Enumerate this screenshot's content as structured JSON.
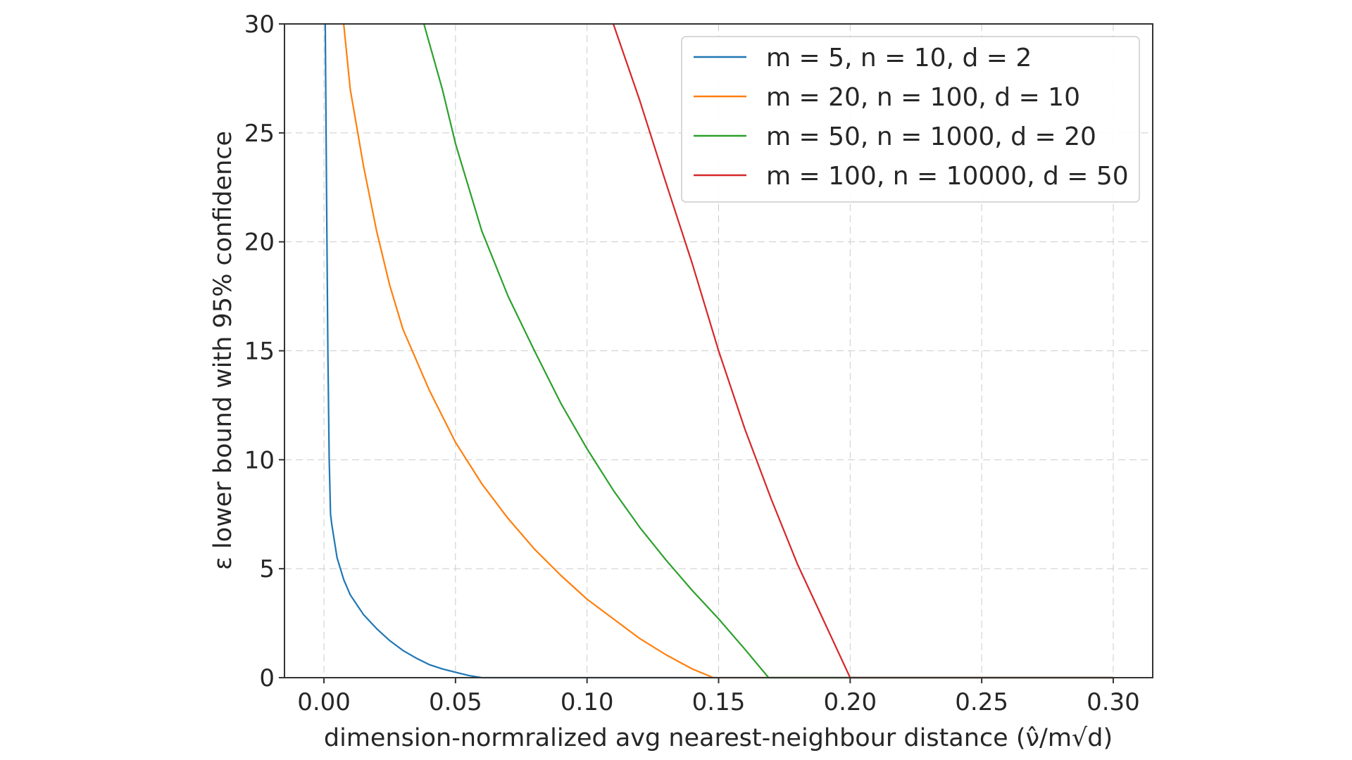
{
  "chart_data": {
    "type": "line",
    "xlabel": "dimension-normralized avg nearest-neighbour distance (ν̂/m√d)",
    "ylabel": "ε lower bound with 95% confidence",
    "xlim": [
      -0.015,
      0.315
    ],
    "ylim": [
      0,
      30
    ],
    "xticks": [
      "0.00",
      "0.05",
      "0.10",
      "0.15",
      "0.20",
      "0.25",
      "0.30"
    ],
    "yticks": [
      "0",
      "5",
      "10",
      "15",
      "20",
      "25",
      "30"
    ],
    "grid": true,
    "legend_position": "top-right",
    "series": [
      {
        "name": "m = 5, n = 10, d = 2",
        "color": "#1f77b4",
        "x": [
          0.0005,
          0.001,
          0.0015,
          0.002,
          0.0025,
          0.003,
          0.005,
          0.0075,
          0.01,
          0.015,
          0.02,
          0.025,
          0.03,
          0.035,
          0.04,
          0.045,
          0.05,
          0.055,
          0.06,
          0.1,
          0.15,
          0.2,
          0.25,
          0.3
        ],
        "y": [
          30,
          22,
          15,
          10,
          7.5,
          7.0,
          5.5,
          4.5,
          3.8,
          2.9,
          2.25,
          1.7,
          1.25,
          0.9,
          0.6,
          0.4,
          0.25,
          0.1,
          0,
          0,
          0,
          0,
          0,
          0
        ]
      },
      {
        "name": "m = 20, n = 100, d = 10",
        "color": "#ff7f0e",
        "x": [
          0.0075,
          0.01,
          0.015,
          0.02,
          0.025,
          0.03,
          0.04,
          0.05,
          0.06,
          0.07,
          0.08,
          0.09,
          0.1,
          0.11,
          0.12,
          0.13,
          0.14,
          0.148,
          0.2,
          0.25,
          0.3
        ],
        "y": [
          30,
          27,
          23.5,
          20.5,
          18,
          16,
          13.2,
          10.8,
          8.9,
          7.3,
          5.9,
          4.7,
          3.6,
          2.7,
          1.8,
          1.05,
          0.4,
          0,
          0,
          0,
          0
        ]
      },
      {
        "name": "m = 50, n = 1000, d = 20",
        "color": "#2ca02c",
        "x": [
          0.038,
          0.045,
          0.05,
          0.06,
          0.07,
          0.08,
          0.09,
          0.1,
          0.11,
          0.12,
          0.13,
          0.14,
          0.15,
          0.16,
          0.169,
          0.2,
          0.25,
          0.3
        ],
        "y": [
          30,
          27,
          24.5,
          20.5,
          17.5,
          15,
          12.6,
          10.5,
          8.6,
          6.9,
          5.4,
          4.0,
          2.7,
          1.3,
          0,
          0,
          0,
          0
        ]
      },
      {
        "name": "m = 100, n = 10000, d = 50",
        "color": "#d62728",
        "x": [
          0.11,
          0.12,
          0.13,
          0.14,
          0.15,
          0.16,
          0.17,
          0.18,
          0.19,
          0.2,
          0.25,
          0.3
        ],
        "y": [
          30,
          26.5,
          22.7,
          19,
          15,
          11.4,
          8.2,
          5.2,
          2.6,
          0,
          0,
          0
        ]
      }
    ]
  }
}
